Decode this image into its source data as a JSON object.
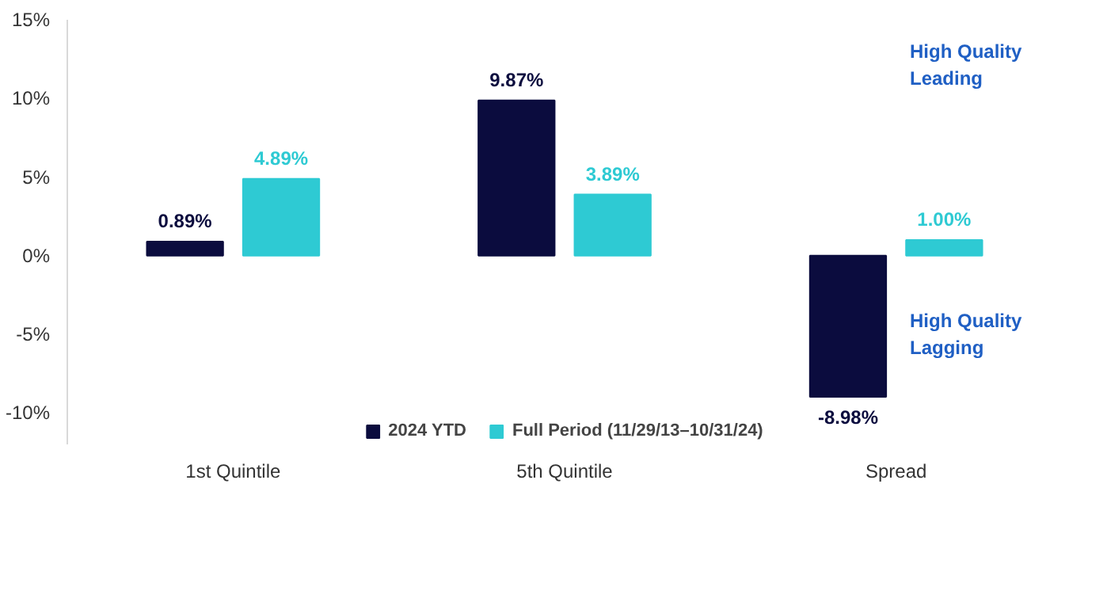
{
  "chart_data": {
    "type": "bar",
    "categories": [
      "1st Quintile",
      "5th Quintile",
      "Spread"
    ],
    "series": [
      {
        "name": "2024 YTD",
        "color": "#0b0c3e",
        "values": [
          0.89,
          9.87,
          -8.98
        ],
        "value_labels": [
          "0.89%",
          "9.87%",
          "-8.98%"
        ]
      },
      {
        "name": "Full Period (11/29/13–10/31/24)",
        "color": "#2ecad3",
        "values": [
          4.89,
          3.89,
          1.0
        ],
        "value_labels": [
          "4.89%",
          "3.89%",
          "1.00%"
        ]
      }
    ],
    "ylim": [
      -12,
      15
    ],
    "yticks": [
      {
        "value": -10,
        "label": "-10%"
      },
      {
        "value": -5,
        "label": "-5%"
      },
      {
        "value": 0,
        "label": "0%"
      },
      {
        "value": 5,
        "label": "5%"
      },
      {
        "value": 10,
        "label": "10%"
      },
      {
        "value": 15,
        "label": "15%"
      }
    ],
    "annotations": [
      "High Quality\nLeading",
      "High Quality\nLagging"
    ],
    "grid": false,
    "legend": "bottom"
  }
}
